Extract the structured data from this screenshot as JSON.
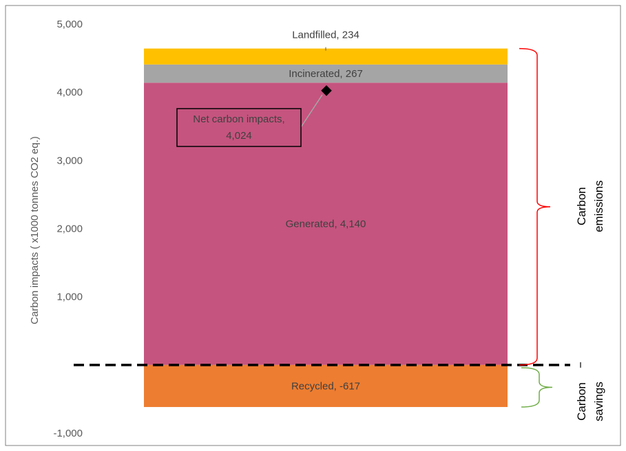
{
  "chart_data": {
    "type": "bar",
    "ylabel": "Carbon impacts ( x1000 tonnes CO2 eq.)",
    "ylim": [
      -1000,
      5000
    ],
    "yticks": [
      5000,
      4000,
      3000,
      2000,
      1000,
      -1000
    ],
    "ytick_labels": [
      "5,000",
      "4,000",
      "3,000",
      "2,000",
      "1,000",
      "-1,000"
    ],
    "series": [
      {
        "name": "Generated",
        "value": 4140,
        "label": "Generated,  4,140",
        "color": "#c5547e"
      },
      {
        "name": "Incinerated",
        "value": 267,
        "label": "Incinerated,  267",
        "color": "#a5a5a5"
      },
      {
        "name": "Landfilled",
        "value": 234,
        "label": "Landfilled,  234",
        "color": "#ffc000"
      },
      {
        "name": "Recycled",
        "value": -617,
        "label": "Recycled, -617",
        "color": "#ed7d31"
      }
    ],
    "net": {
      "value": 4024,
      "label_line1": "Net carbon impacts,",
      "label_line2": "4,024"
    },
    "brackets": [
      {
        "line1": "Carbon",
        "line2": "emissions",
        "color": "#ff0000",
        "from": 0,
        "to": 4641
      },
      {
        "line1": "Carbon",
        "line2": "savings",
        "color": "#70ad47",
        "from": -617,
        "to": 0
      }
    ],
    "zero_line": "dashed"
  }
}
